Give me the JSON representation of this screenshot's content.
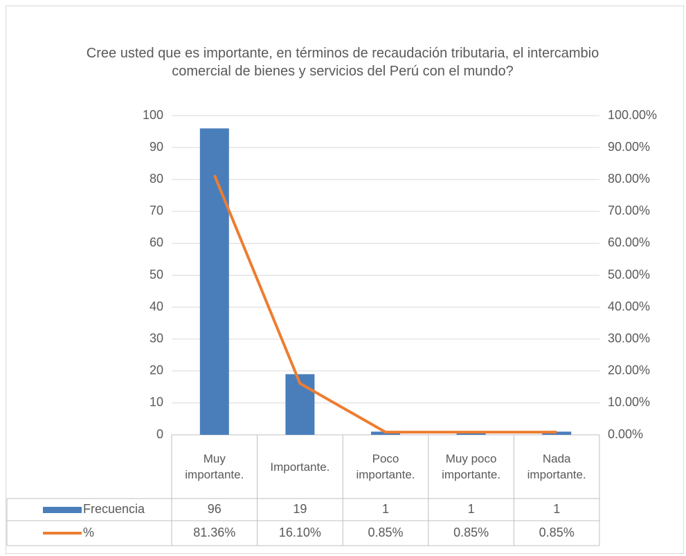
{
  "chart_data": {
    "type": "combo",
    "title": "Cree usted que es importante, en términos de recaudación tributaria, el intercambio comercial de bienes y servicios del Perú con el mundo?",
    "categories": [
      "Muy importante.",
      "Importante.",
      "Poco importante.",
      "Muy poco importante.",
      "Nada importante."
    ],
    "series": [
      {
        "name": "Frecuencia",
        "type": "bar",
        "color": "#4a7ebb",
        "values": [
          96,
          19,
          1,
          1,
          1
        ]
      },
      {
        "name": "%",
        "type": "line",
        "axis": "y2",
        "color": "#ed7d31",
        "values": [
          81.36,
          16.1,
          0.85,
          0.85,
          0.85
        ],
        "value_labels": [
          "81.36%",
          "16.10%",
          "0.85%",
          "0.85%",
          "0.85%"
        ]
      }
    ],
    "ylim": [
      0,
      100
    ],
    "yticks": [
      0,
      10,
      20,
      30,
      40,
      50,
      60,
      70,
      80,
      90,
      100
    ],
    "y2lim": [
      0,
      100
    ],
    "y2ticks": [
      {
        "value": 0,
        "label": "0.00%"
      },
      {
        "value": 10,
        "label": "10.00%"
      },
      {
        "value": 20,
        "label": "20.00%"
      },
      {
        "value": 30,
        "label": "30.00%"
      },
      {
        "value": 40,
        "label": "40.00%"
      },
      {
        "value": 50,
        "label": "50.00%"
      },
      {
        "value": 60,
        "label": "60.00%"
      },
      {
        "value": 70,
        "label": "70.00%"
      },
      {
        "value": 80,
        "label": "80.00%"
      },
      {
        "value": 90,
        "label": "90.00%"
      },
      {
        "value": 100,
        "label": "100.00%"
      }
    ],
    "grid": true,
    "legend": "data-table"
  }
}
